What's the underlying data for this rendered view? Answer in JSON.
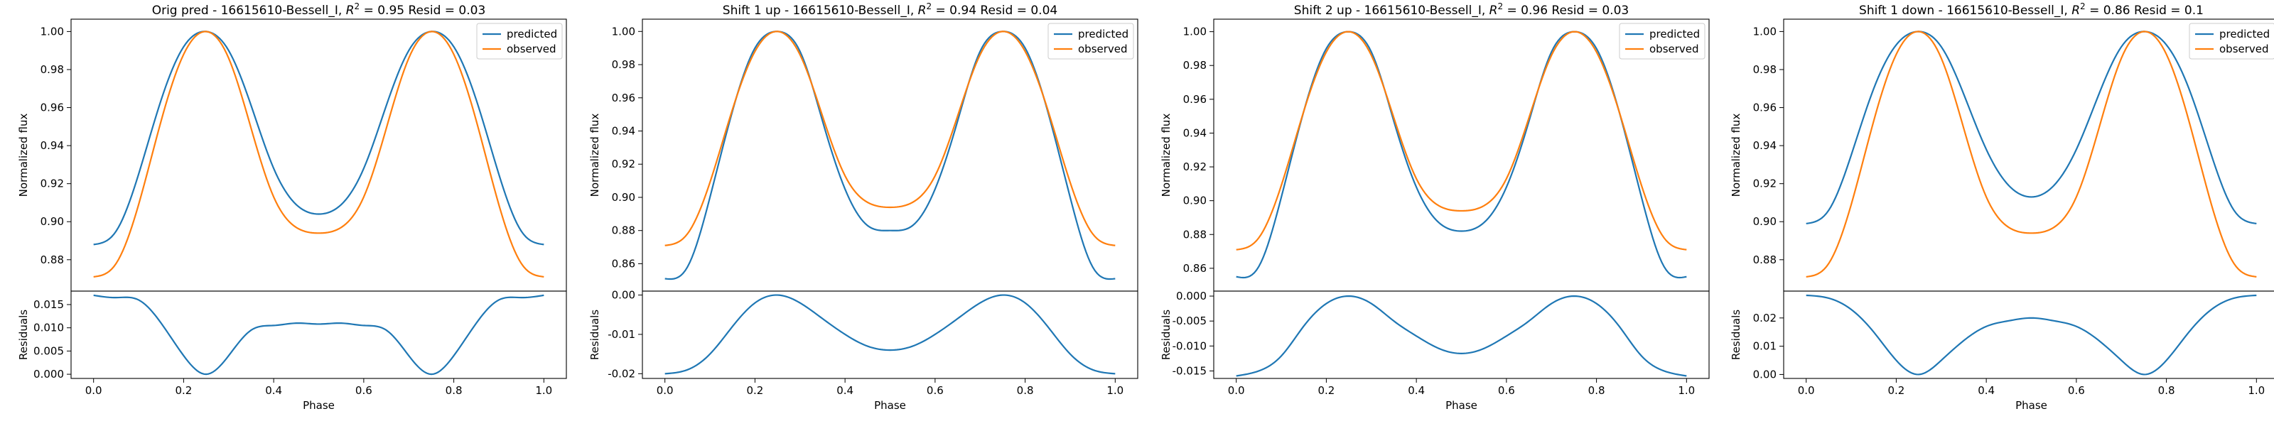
{
  "figure": {
    "colors": {
      "predicted": "#1f77b4",
      "observed": "#ff7f0e"
    }
  },
  "chart_data": [
    {
      "type": "line",
      "title": "Orig pred - 16615610-Bessell_I, $R^2 = 0.95$ Resid = 0.03",
      "title_parts": {
        "prefix": "Orig pred - 16615610-Bessell_I, ",
        "r2_var": "R",
        "r2_exp": "2",
        "r2_eq": " = 0.95",
        "suffix": " Resid = 0.03"
      },
      "xlabel": "Phase",
      "ylabel": "Normalized flux",
      "residual_ylabel": "Residuals",
      "xlim": [
        -0.05,
        1.05
      ],
      "x_ticks": [
        "0.0",
        "0.2",
        "0.4",
        "0.6",
        "0.8",
        "1.0"
      ],
      "ylim": [
        0.8635,
        1.0065
      ],
      "y_ticks": [
        "0.88",
        "0.90",
        "0.92",
        "0.94",
        "0.96",
        "0.98",
        "1.00"
      ],
      "residual_ylim": [
        -0.0009,
        0.0179
      ],
      "residual_y_ticks": [
        "0.000",
        "0.005",
        "0.010",
        "0.015"
      ],
      "legend": {
        "position": "top-right",
        "entries": [
          "predicted",
          "observed"
        ]
      },
      "grid": false,
      "x": [
        0,
        0.05,
        0.1,
        0.15,
        0.2,
        0.25,
        0.3,
        0.35,
        0.4,
        0.45,
        0.5,
        0.55,
        0.6,
        0.65,
        0.7,
        0.75,
        0.8,
        0.85,
        0.9,
        0.95,
        1.0
      ],
      "series": [
        {
          "name": "predicted",
          "values": [
            0.888,
            0.895,
            0.925,
            0.964,
            0.992,
            1.0,
            0.99,
            0.961,
            0.928,
            0.909,
            0.904,
            0.909,
            0.928,
            0.961,
            0.99,
            1.0,
            0.992,
            0.964,
            0.925,
            0.895,
            0.888
          ]
        },
        {
          "name": "observed",
          "values": [
            0.871,
            0.878,
            0.909,
            0.953,
            0.988,
            1.0,
            0.986,
            0.949,
            0.913,
            0.897,
            0.894,
            0.897,
            0.913,
            0.949,
            0.986,
            1.0,
            0.988,
            0.953,
            0.909,
            0.878,
            0.871
          ]
        }
      ],
      "residuals": [
        0.017,
        0.0165,
        0.016,
        0.011,
        0.004,
        0.0,
        0.004,
        0.0095,
        0.0105,
        0.011,
        0.0108,
        0.011,
        0.0105,
        0.0095,
        0.004,
        0.0,
        0.004,
        0.011,
        0.016,
        0.0165,
        0.017
      ]
    },
    {
      "type": "line",
      "title": "Shift 1 up - 16615610-Bessell_I, $R^2 = 0.94$ Resid = 0.04",
      "title_parts": {
        "prefix": "Shift 1 up - 16615610-Bessell_I, ",
        "r2_var": "R",
        "r2_exp": "2",
        "r2_eq": " = 0.94",
        "suffix": " Resid = 0.04"
      },
      "xlabel": "Phase",
      "ylabel": "Normalized flux",
      "residual_ylabel": "Residuals",
      "xlim": [
        -0.05,
        1.05
      ],
      "x_ticks": [
        "0.0",
        "0.2",
        "0.4",
        "0.6",
        "0.8",
        "1.0"
      ],
      "ylim": [
        0.8435,
        1.0074
      ],
      "y_ticks": [
        "0.86",
        "0.88",
        "0.90",
        "0.92",
        "0.94",
        "0.96",
        "0.98",
        "1.00"
      ],
      "residual_ylim": [
        -0.0212,
        0.001
      ],
      "residual_y_ticks": [
        "0.00",
        "-0.01",
        "-0.02"
      ],
      "legend": {
        "position": "top-right",
        "entries": [
          "predicted",
          "observed"
        ]
      },
      "grid": false,
      "x": [
        0,
        0.05,
        0.1,
        0.15,
        0.2,
        0.25,
        0.3,
        0.35,
        0.4,
        0.45,
        0.5,
        0.55,
        0.6,
        0.65,
        0.7,
        0.75,
        0.8,
        0.85,
        0.9,
        0.95,
        1.0
      ],
      "series": [
        {
          "name": "predicted",
          "values": [
            0.851,
            0.858,
            0.9,
            0.952,
            0.99,
            1.0,
            0.988,
            0.946,
            0.905,
            0.883,
            0.88,
            0.883,
            0.905,
            0.946,
            0.988,
            1.0,
            0.99,
            0.952,
            0.9,
            0.858,
            0.851
          ]
        },
        {
          "name": "observed",
          "values": [
            0.871,
            0.878,
            0.909,
            0.953,
            0.988,
            1.0,
            0.986,
            0.949,
            0.913,
            0.897,
            0.894,
            0.897,
            0.913,
            0.949,
            0.986,
            1.0,
            0.988,
            0.953,
            0.909,
            0.878,
            0.871
          ]
        }
      ],
      "residuals": [
        -0.02,
        -0.019,
        -0.015,
        -0.008,
        -0.002,
        0.0,
        -0.002,
        -0.006,
        -0.01,
        -0.013,
        -0.014,
        -0.013,
        -0.01,
        -0.006,
        -0.002,
        0.0,
        -0.002,
        -0.008,
        -0.015,
        -0.019,
        -0.02
      ]
    },
    {
      "type": "line",
      "title": "Shift 2 up - 16615610-Bessell_I, $R^2 = 0.96$ Resid = 0.03",
      "title_parts": {
        "prefix": "Shift 2 up - 16615610-Bessell_I, ",
        "r2_var": "R",
        "r2_exp": "2",
        "r2_eq": " = 0.96",
        "suffix": " Resid = 0.03"
      },
      "xlabel": "Phase",
      "ylabel": "Normalized flux",
      "residual_ylabel": "Residuals",
      "xlim": [
        -0.05,
        1.05
      ],
      "x_ticks": [
        "0.0",
        "0.2",
        "0.4",
        "0.6",
        "0.8",
        "1.0"
      ],
      "ylim": [
        0.8465,
        1.0074
      ],
      "y_ticks": [
        "0.86",
        "0.88",
        "0.90",
        "0.92",
        "0.94",
        "0.96",
        "0.98",
        "1.00"
      ],
      "residual_ylim": [
        -0.0165,
        0.001
      ],
      "residual_y_ticks": [
        "0.000",
        "-0.005",
        "-0.010",
        "-0.015"
      ],
      "legend": {
        "position": "top-right",
        "entries": [
          "predicted",
          "observed"
        ]
      },
      "grid": false,
      "x": [
        0,
        0.05,
        0.1,
        0.15,
        0.2,
        0.25,
        0.3,
        0.35,
        0.4,
        0.45,
        0.5,
        0.55,
        0.6,
        0.65,
        0.7,
        0.75,
        0.8,
        0.85,
        0.9,
        0.95,
        1.0
      ],
      "series": [
        {
          "name": "predicted",
          "values": [
            0.855,
            0.861,
            0.902,
            0.953,
            0.99,
            1.0,
            0.988,
            0.947,
            0.908,
            0.887,
            0.882,
            0.887,
            0.908,
            0.947,
            0.988,
            1.0,
            0.99,
            0.953,
            0.902,
            0.861,
            0.855
          ]
        },
        {
          "name": "observed",
          "values": [
            0.871,
            0.878,
            0.909,
            0.953,
            0.988,
            1.0,
            0.986,
            0.949,
            0.913,
            0.897,
            0.894,
            0.897,
            0.913,
            0.949,
            0.986,
            1.0,
            0.988,
            0.953,
            0.909,
            0.878,
            0.871
          ]
        }
      ],
      "residuals": [
        -0.016,
        -0.015,
        -0.012,
        -0.006,
        -0.0015,
        0.0,
        -0.0015,
        -0.005,
        -0.008,
        -0.0105,
        -0.0115,
        -0.0105,
        -0.008,
        -0.005,
        -0.0015,
        0.0,
        -0.0015,
        -0.006,
        -0.012,
        -0.015,
        -0.016
      ]
    },
    {
      "type": "line",
      "title": "Shift 1 down - 16615610-Bessell_I, $R^2 = 0.86$ Resid = 0.1",
      "title_parts": {
        "prefix": "Shift 1 down - 16615610-Bessell_I, ",
        "r2_var": "R",
        "r2_exp": "2",
        "r2_eq": " = 0.86",
        "suffix": " Resid = 0.1"
      },
      "xlabel": "Phase",
      "ylabel": "Normalized flux",
      "residual_ylabel": "Residuals",
      "xlim": [
        -0.05,
        1.05
      ],
      "x_ticks": [
        "0.0",
        "0.2",
        "0.4",
        "0.6",
        "0.8",
        "1.0"
      ],
      "ylim": [
        0.8635,
        1.0065
      ],
      "y_ticks": [
        "0.88",
        "0.90",
        "0.92",
        "0.94",
        "0.96",
        "0.98",
        "1.00"
      ],
      "residual_ylim": [
        -0.0014,
        0.0295
      ],
      "residual_y_ticks": [
        "0.00",
        "0.01",
        "0.02"
      ],
      "legend": {
        "position": "top-right",
        "entries": [
          "predicted",
          "observed"
        ]
      },
      "grid": false,
      "x": [
        0,
        0.05,
        0.1,
        0.15,
        0.2,
        0.25,
        0.3,
        0.35,
        0.4,
        0.45,
        0.5,
        0.55,
        0.6,
        0.65,
        0.7,
        0.75,
        0.8,
        0.85,
        0.9,
        0.95,
        1.0
      ],
      "series": [
        {
          "name": "predicted",
          "values": [
            0.899,
            0.906,
            0.935,
            0.97,
            0.993,
            1.0,
            0.992,
            0.967,
            0.938,
            0.919,
            0.913,
            0.919,
            0.938,
            0.967,
            0.992,
            1.0,
            0.993,
            0.97,
            0.935,
            0.906,
            0.899
          ]
        },
        {
          "name": "observed",
          "values": [
            0.871,
            0.878,
            0.909,
            0.953,
            0.988,
            1.0,
            0.986,
            0.949,
            0.913,
            0.897,
            0.894,
            0.897,
            0.913,
            0.949,
            0.986,
            1.0,
            0.988,
            0.953,
            0.909,
            0.878,
            0.871
          ]
        }
      ],
      "residuals": [
        0.028,
        0.027,
        0.023,
        0.015,
        0.005,
        0.0,
        0.005,
        0.012,
        0.017,
        0.019,
        0.02,
        0.019,
        0.017,
        0.012,
        0.005,
        0.0,
        0.005,
        0.015,
        0.023,
        0.027,
        0.028
      ]
    }
  ]
}
